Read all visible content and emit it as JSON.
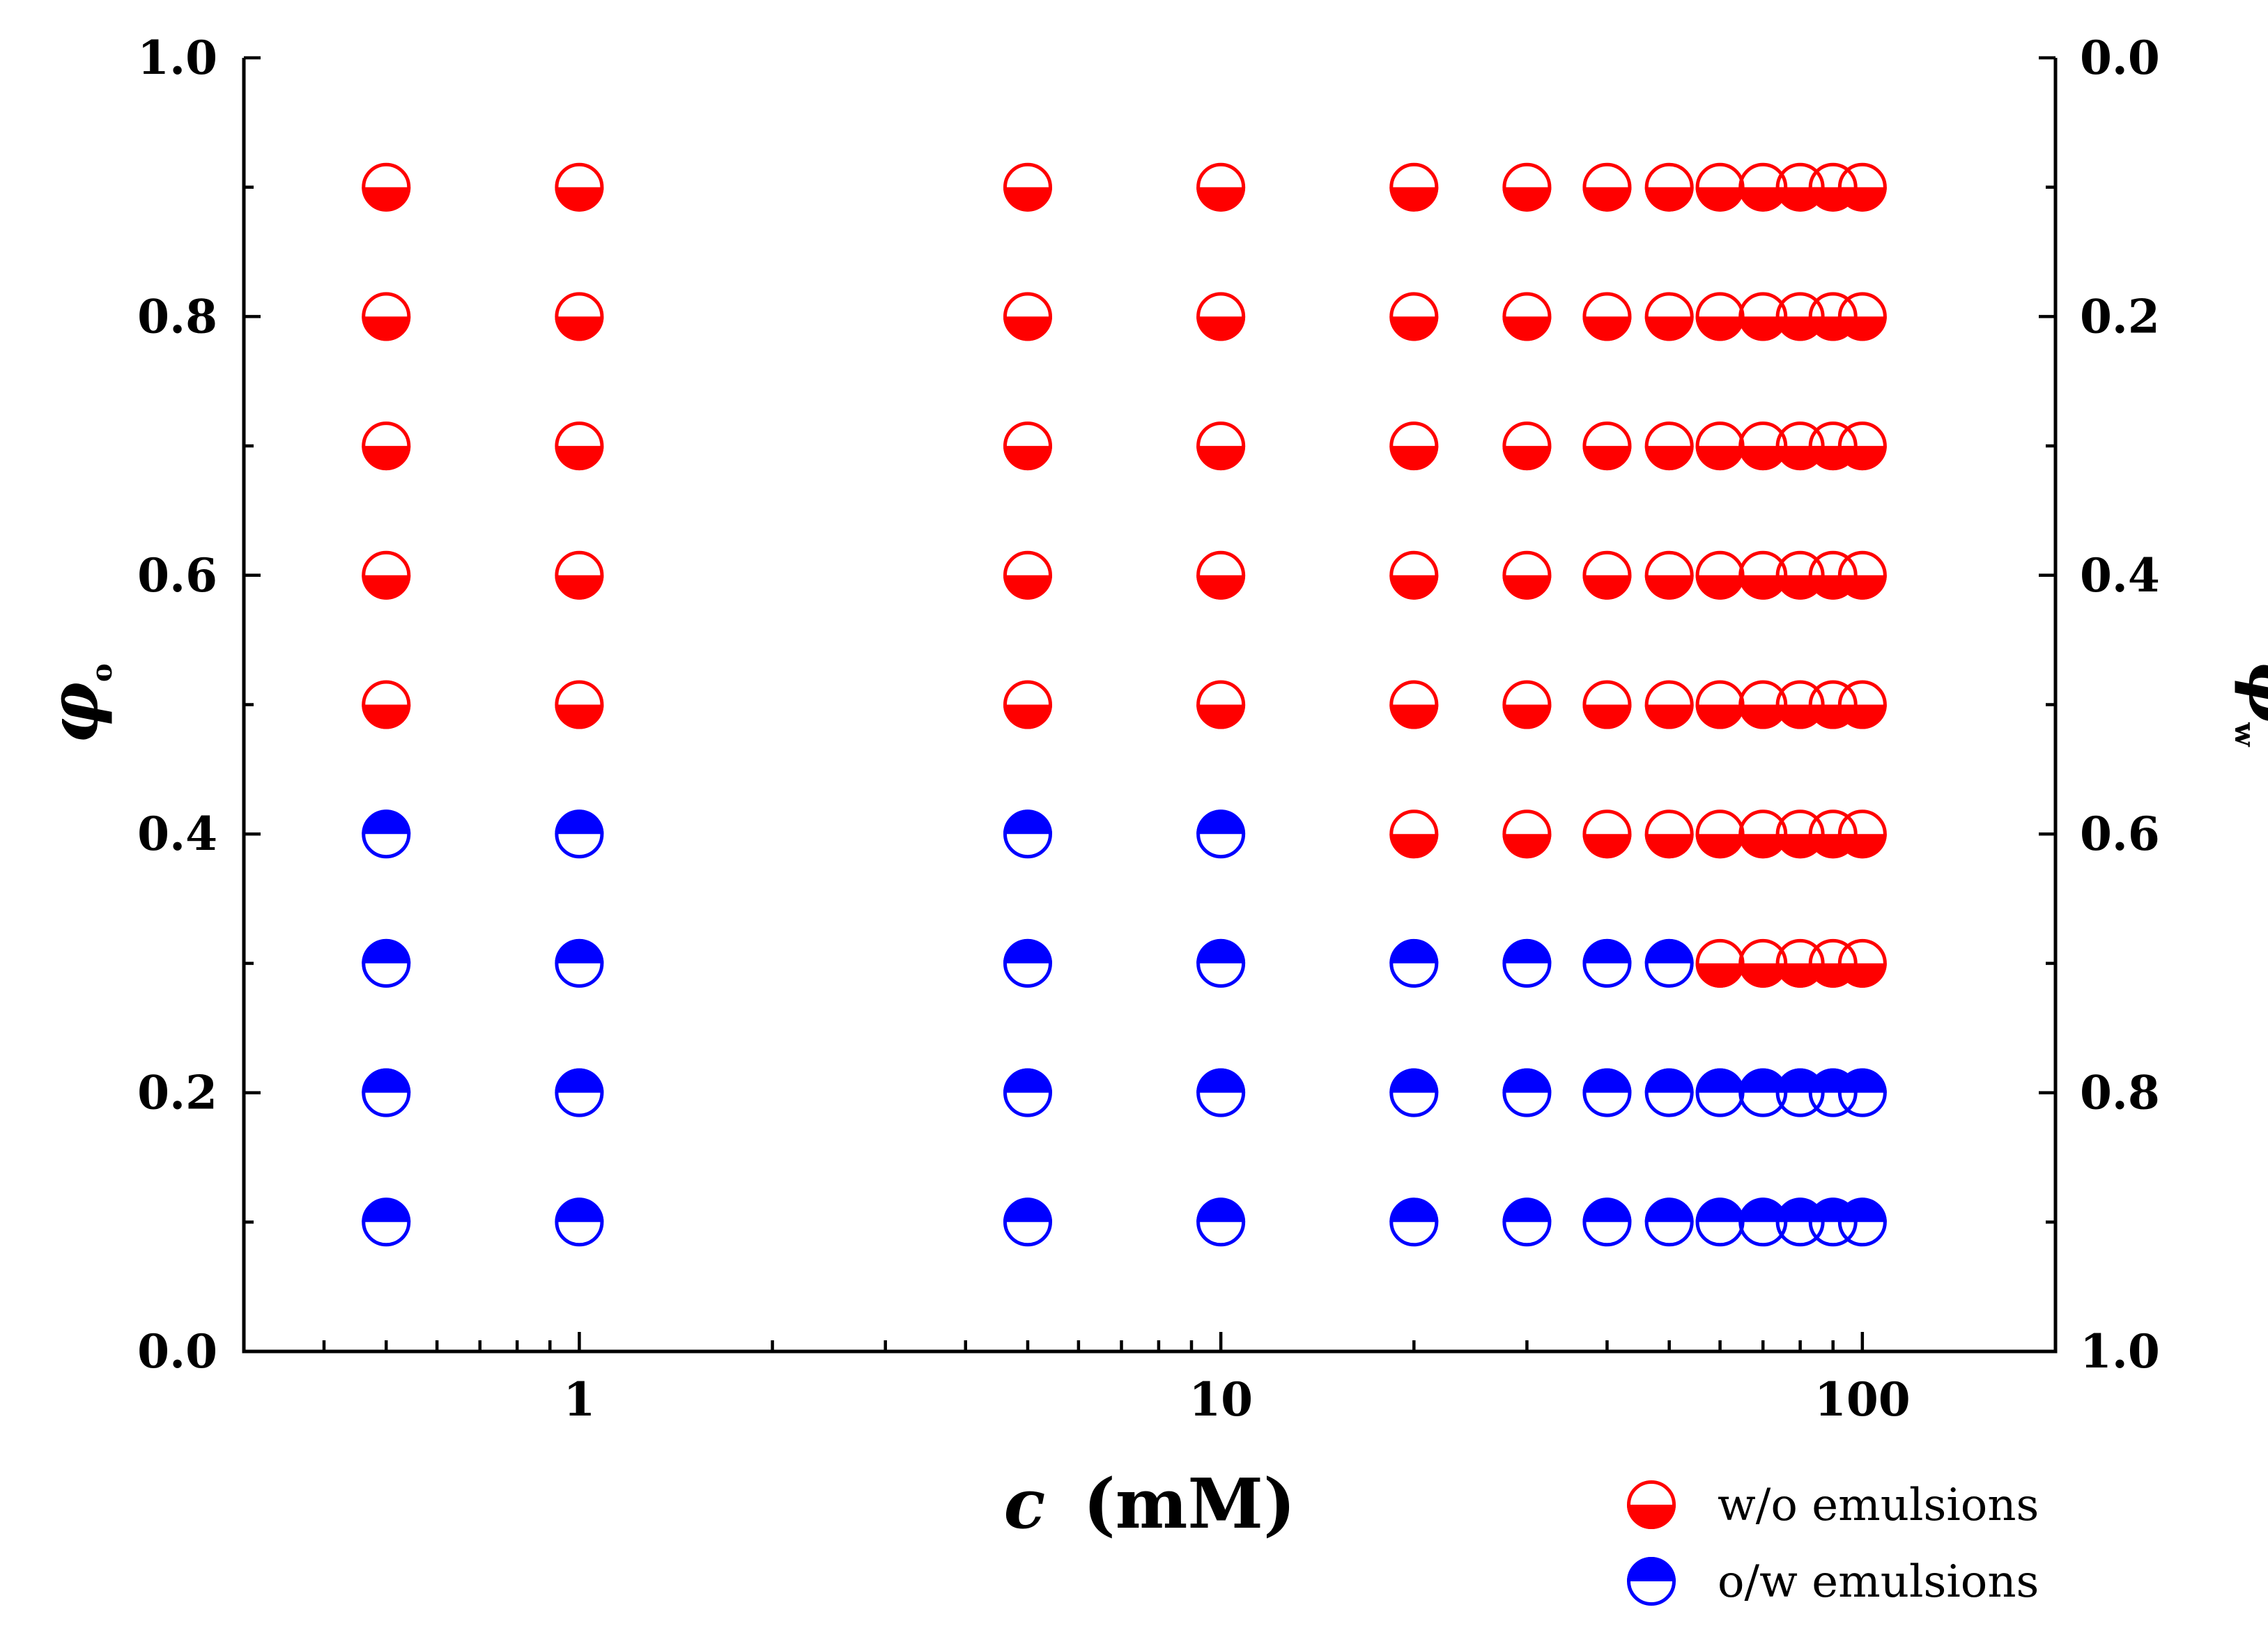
{
  "chart_data": {
    "type": "scatter",
    "title": "",
    "xlabel": "c (mM)",
    "xlabel_var": "c",
    "xlabel_unit": "(mM)",
    "ylabel_left": "φo",
    "ylabel_left_sym": "φ",
    "ylabel_left_sub": "o",
    "ylabel_right": "φw",
    "ylabel_right_sym": "φ",
    "ylabel_right_sub": "w",
    "xscale": "log",
    "xlim": [
      0.3,
      200
    ],
    "ylim": [
      0.0,
      1.0
    ],
    "x_ticks": [
      1,
      10,
      100
    ],
    "x_tick_labels": [
      "1",
      "10",
      "100"
    ],
    "y_ticks": [
      0.0,
      0.2,
      0.4,
      0.6,
      0.8,
      1.0
    ],
    "y_tick_labels": [
      "0.0",
      "0.2",
      "0.4",
      "0.6",
      "0.8",
      "1.0"
    ],
    "y2_tick_labels": [
      "1.0",
      "0.8",
      "0.6",
      "0.4",
      "0.2",
      "0.0"
    ],
    "concentrations": [
      0.5,
      1,
      5,
      10,
      20,
      30,
      40,
      50,
      60,
      70,
      80,
      90,
      100
    ],
    "grid": false,
    "legend_position": "bottom-right",
    "series": [
      {
        "name": "w/o emulsions",
        "color": "#ff0000",
        "marker": "circle-half-bottom-filled",
        "points": [
          [
            0.5,
            0.9
          ],
          [
            1,
            0.9
          ],
          [
            5,
            0.9
          ],
          [
            10,
            0.9
          ],
          [
            20,
            0.9
          ],
          [
            30,
            0.9
          ],
          [
            40,
            0.9
          ],
          [
            50,
            0.9
          ],
          [
            60,
            0.9
          ],
          [
            70,
            0.9
          ],
          [
            80,
            0.9
          ],
          [
            90,
            0.9
          ],
          [
            100,
            0.9
          ],
          [
            0.5,
            0.8
          ],
          [
            1,
            0.8
          ],
          [
            5,
            0.8
          ],
          [
            10,
            0.8
          ],
          [
            20,
            0.8
          ],
          [
            30,
            0.8
          ],
          [
            40,
            0.8
          ],
          [
            50,
            0.8
          ],
          [
            60,
            0.8
          ],
          [
            70,
            0.8
          ],
          [
            80,
            0.8
          ],
          [
            90,
            0.8
          ],
          [
            100,
            0.8
          ],
          [
            0.5,
            0.7
          ],
          [
            1,
            0.7
          ],
          [
            5,
            0.7
          ],
          [
            10,
            0.7
          ],
          [
            20,
            0.7
          ],
          [
            30,
            0.7
          ],
          [
            40,
            0.7
          ],
          [
            50,
            0.7
          ],
          [
            60,
            0.7
          ],
          [
            70,
            0.7
          ],
          [
            80,
            0.7
          ],
          [
            90,
            0.7
          ],
          [
            100,
            0.7
          ],
          [
            0.5,
            0.6
          ],
          [
            1,
            0.6
          ],
          [
            5,
            0.6
          ],
          [
            10,
            0.6
          ],
          [
            20,
            0.6
          ],
          [
            30,
            0.6
          ],
          [
            40,
            0.6
          ],
          [
            50,
            0.6
          ],
          [
            60,
            0.6
          ],
          [
            70,
            0.6
          ],
          [
            80,
            0.6
          ],
          [
            90,
            0.6
          ],
          [
            100,
            0.6
          ],
          [
            0.5,
            0.5
          ],
          [
            1,
            0.5
          ],
          [
            5,
            0.5
          ],
          [
            10,
            0.5
          ],
          [
            20,
            0.5
          ],
          [
            30,
            0.5
          ],
          [
            40,
            0.5
          ],
          [
            50,
            0.5
          ],
          [
            60,
            0.5
          ],
          [
            70,
            0.5
          ],
          [
            80,
            0.5
          ],
          [
            90,
            0.5
          ],
          [
            100,
            0.5
          ],
          [
            20,
            0.4
          ],
          [
            30,
            0.4
          ],
          [
            40,
            0.4
          ],
          [
            50,
            0.4
          ],
          [
            60,
            0.4
          ],
          [
            70,
            0.4
          ],
          [
            80,
            0.4
          ],
          [
            90,
            0.4
          ],
          [
            100,
            0.4
          ],
          [
            60,
            0.3
          ],
          [
            70,
            0.3
          ],
          [
            80,
            0.3
          ],
          [
            90,
            0.3
          ],
          [
            100,
            0.3
          ]
        ]
      },
      {
        "name": "o/w emulsions",
        "color": "#0000ff",
        "marker": "circle-half-top-filled",
        "points": [
          [
            0.5,
            0.4
          ],
          [
            1,
            0.4
          ],
          [
            5,
            0.4
          ],
          [
            10,
            0.4
          ],
          [
            0.5,
            0.3
          ],
          [
            1,
            0.3
          ],
          [
            5,
            0.3
          ],
          [
            10,
            0.3
          ],
          [
            20,
            0.3
          ],
          [
            30,
            0.3
          ],
          [
            40,
            0.3
          ],
          [
            50,
            0.3
          ],
          [
            0.5,
            0.2
          ],
          [
            1,
            0.2
          ],
          [
            5,
            0.2
          ],
          [
            10,
            0.2
          ],
          [
            20,
            0.2
          ],
          [
            30,
            0.2
          ],
          [
            40,
            0.2
          ],
          [
            50,
            0.2
          ],
          [
            60,
            0.2
          ],
          [
            70,
            0.2
          ],
          [
            80,
            0.2
          ],
          [
            90,
            0.2
          ],
          [
            100,
            0.2
          ],
          [
            0.5,
            0.1
          ],
          [
            1,
            0.1
          ],
          [
            5,
            0.1
          ],
          [
            10,
            0.1
          ],
          [
            20,
            0.1
          ],
          [
            30,
            0.1
          ],
          [
            40,
            0.1
          ],
          [
            50,
            0.1
          ],
          [
            60,
            0.1
          ],
          [
            70,
            0.1
          ],
          [
            80,
            0.1
          ],
          [
            90,
            0.1
          ],
          [
            100,
            0.1
          ]
        ]
      }
    ]
  }
}
